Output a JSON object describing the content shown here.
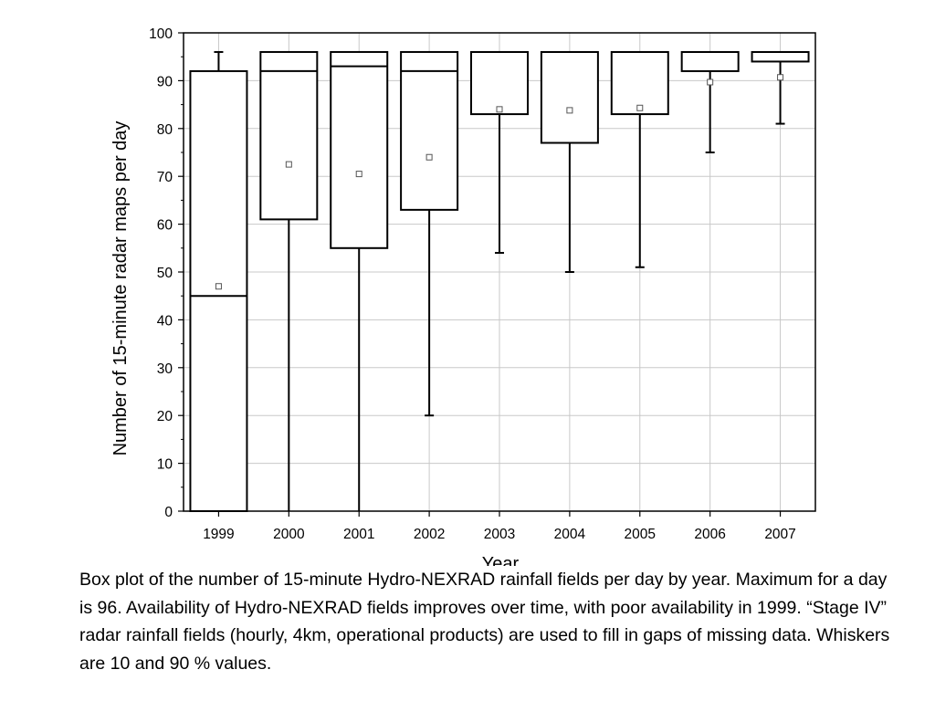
{
  "chart_data": {
    "type": "box",
    "xlabel": "Year",
    "ylabel": "Number of 15-minute radar maps per day",
    "ylim": [
      0,
      100
    ],
    "yticks": [
      0,
      10,
      20,
      30,
      40,
      50,
      60,
      70,
      80,
      90,
      100
    ],
    "grid": true,
    "categories": [
      "1999",
      "2000",
      "2001",
      "2002",
      "2003",
      "2004",
      "2005",
      "2006",
      "2007"
    ],
    "boxes": [
      {
        "whisker_low": 0,
        "q1": 0,
        "median": 45,
        "q3": 92,
        "whisker_high": 96,
        "mean": 47
      },
      {
        "whisker_low": 0,
        "q1": 61,
        "median": 92,
        "q3": 96,
        "whisker_high": 96,
        "mean": 72.5
      },
      {
        "whisker_low": 0,
        "q1": 55,
        "median": 93,
        "q3": 96,
        "whisker_high": 96,
        "mean": 70.5
      },
      {
        "whisker_low": 20,
        "q1": 63,
        "median": 92,
        "q3": 96,
        "whisker_high": 96,
        "mean": 74
      },
      {
        "whisker_low": 54,
        "q1": 83,
        "median": 96,
        "q3": 96,
        "whisker_high": 96,
        "mean": 84
      },
      {
        "whisker_low": 50,
        "q1": 77,
        "median": 96,
        "q3": 96,
        "whisker_high": 96,
        "mean": 83.8
      },
      {
        "whisker_low": 51,
        "q1": 83,
        "median": 96,
        "q3": 96,
        "whisker_high": 96,
        "mean": 84.3
      },
      {
        "whisker_low": 75,
        "q1": 92,
        "median": 96,
        "q3": 96,
        "whisker_high": 96,
        "mean": 89.7
      },
      {
        "whisker_low": 81,
        "q1": 94,
        "median": 96,
        "q3": 96,
        "whisker_high": 96,
        "mean": 90.7
      }
    ]
  },
  "caption": "Box plot of the number of 15-minute Hydro-NEXRAD rainfall fields per day by year.  Maximum for a day is 96.  Availability of Hydro-NEXRAD fields improves over time, with poor availability in 1999.  “Stage IV” radar rainfall fields (hourly, 4km, operational products) are used to fill in gaps of missing data.  Whiskers are 10 and 90 % values."
}
